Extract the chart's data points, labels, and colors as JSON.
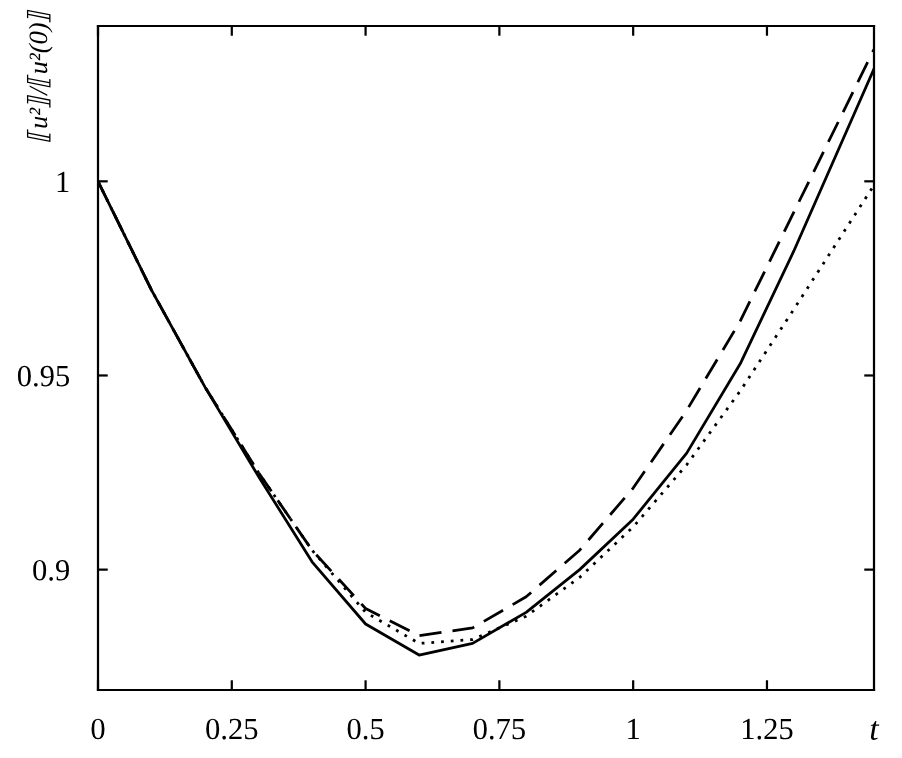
{
  "chart_data": {
    "type": "line",
    "xlabel": "t",
    "ylabel": "⟦u²⟧/⟦u²(0)⟧",
    "x": [
      0,
      0.1,
      0.2,
      0.3,
      0.4,
      0.5,
      0.6,
      0.7,
      0.8,
      0.9,
      1.0,
      1.1,
      1.2,
      1.3,
      1.45
    ],
    "series": [
      {
        "color": "#000000",
        "line_style": "solid",
        "values": [
          1,
          0.972,
          0.947,
          0.924,
          0.902,
          0.886,
          0.878,
          0.881,
          0.889,
          0.9,
          0.913,
          0.93,
          0.953,
          0.982,
          1.029
        ]
      },
      {
        "color": "#000000",
        "line_style": "dashed",
        "values": [
          1,
          0.972,
          0.947,
          0.925,
          0.905,
          0.89,
          0.883,
          0.885,
          0.893,
          0.905,
          0.921,
          0.941,
          0.964,
          0.992,
          1.034
        ]
      },
      {
        "color": "#000000",
        "line_style": "dotted",
        "values": [
          1,
          0.972,
          0.947,
          0.925,
          0.905,
          0.889,
          0.881,
          0.882,
          0.888,
          0.898,
          0.911,
          0.927,
          0.946,
          0.967,
          0.999
        ]
      }
    ],
    "xlim": [
      0,
      1.45
    ],
    "ylim": [
      0.869,
      1.04
    ],
    "xticks": [
      0,
      0.25,
      0.5,
      0.75,
      1,
      1.25
    ],
    "yticks": [
      0.9,
      0.95,
      1
    ],
    "grid": false,
    "legend": false,
    "marker": "none"
  }
}
